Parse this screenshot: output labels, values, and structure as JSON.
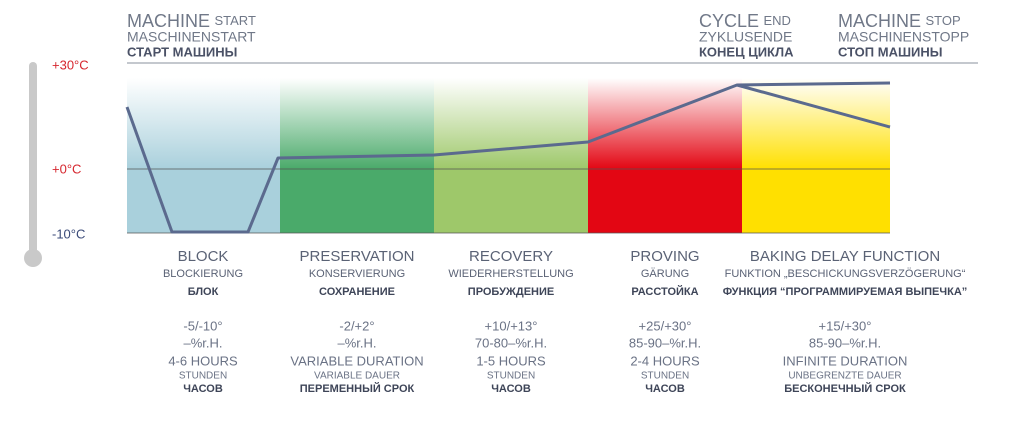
{
  "header": {
    "start": {
      "main": "MACHINE",
      "suffix": "START",
      "de": "MASCHINENSTART",
      "ru": "СТАРТ МАШИНЫ"
    },
    "end": {
      "main": "CYCLE",
      "suffix": "END",
      "de": "ZYKLUSENDE",
      "ru": "КОНЕЦ ЦИКЛА"
    },
    "stop": {
      "main": "MACHINE",
      "suffix": "STOP",
      "de": "MASCHINENSTOPP",
      "ru": "СТОП МАШИНЫ"
    }
  },
  "temperatures": [
    "+30°C",
    "+0°C",
    "-10°C"
  ],
  "phases": [
    {
      "name": "BLOCK",
      "de": "BLOCKIERUNG",
      "ru": "БЛОК",
      "temp": "-5/-10°",
      "humidity": "–%r.H.",
      "duration": "4-6 HOURS",
      "duration_de": "STUNDEN",
      "duration_ru": "ЧАСОВ"
    },
    {
      "name": "PRESERVATION",
      "de": "KONSERVIERUNG",
      "ru": "СОХРАНЕНИЕ",
      "temp": "-2/+2°",
      "humidity": "–%r.H.",
      "duration": "VARIABLE DURATION",
      "duration_de": "VARIABLE DAUER",
      "duration_ru": "ПЕРЕМЕННЫЙ СРОК"
    },
    {
      "name": "RECOVERY",
      "de": "WIEDERHERSTELLUNG",
      "ru": "ПРОБУЖДЕНИЕ",
      "temp": "+10/+13°",
      "humidity": "70-80–%r.H.",
      "duration": "1-5 HOURS",
      "duration_de": "STUNDEN",
      "duration_ru": "ЧАСОВ"
    },
    {
      "name": "PROVING",
      "de": "GÄRUNG",
      "ru": "РАССТОЙКА",
      "temp": "+25/+30°",
      "humidity": "85-90–%r.H.",
      "duration": "2-4 HOURS",
      "duration_de": "STUNDEN",
      "duration_ru": "ЧАСОВ"
    },
    {
      "name": "BAKING DELAY FUNCTION",
      "de": "FUNKTION „BESCHICKUNGSVERZÖGERUNG“",
      "ru": "ФУНКЦИЯ “ПРОГРАММИРУЕМАЯ ВЫПЕЧКА”",
      "temp": "+15/+30°",
      "humidity": "85-90–%r.H.",
      "duration": "INFINITE DURATION",
      "duration_de": "UNBEGRENZTE DAUER",
      "duration_ru": "БЕСКОНЕЧНЫЙ СРОК"
    }
  ]
}
